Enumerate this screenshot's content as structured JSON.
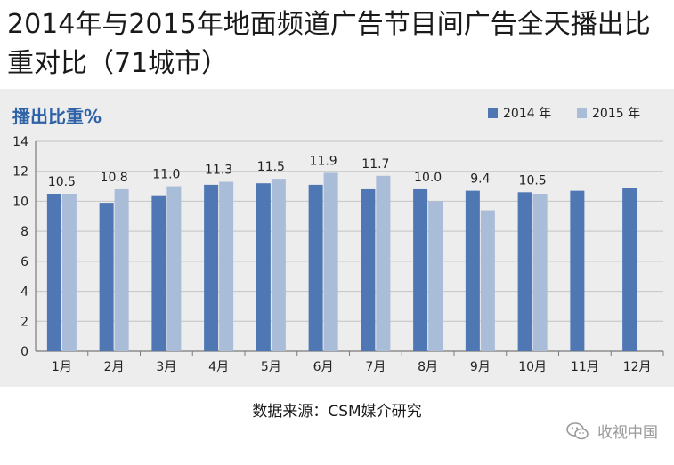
{
  "title": "2014年与2015年地面频道广告节目间广告全天播出比重对比（71城市）",
  "source": "数据来源：CSM媒介研究",
  "watermark": "收视中国",
  "colors": {
    "panel_bg": "#ededed",
    "series_2014": "#4f77b3",
    "series_2015": "#a9bcd8",
    "chart_title": "#2f63a8"
  },
  "chart_data": {
    "type": "bar",
    "title": "播出比重%",
    "categories": [
      "1月",
      "2月",
      "3月",
      "4月",
      "5月",
      "6月",
      "7月",
      "8月",
      "9月",
      "10月",
      "11月",
      "12月"
    ],
    "series": [
      {
        "name": "2014 年",
        "values": [
          10.5,
          9.9,
          10.4,
          11.1,
          11.2,
          11.1,
          10.8,
          10.8,
          10.7,
          10.6,
          10.7,
          10.9
        ]
      },
      {
        "name": "2015 年",
        "values": [
          10.5,
          10.8,
          11.0,
          11.3,
          11.5,
          11.9,
          11.7,
          10.0,
          9.4,
          10.5,
          null,
          null
        ]
      }
    ],
    "data_labels": [
      "10.5",
      "10.8",
      "11.0",
      "11.3",
      "11.5",
      "11.9",
      "11.7",
      "10.0",
      "9.4",
      "10.5"
    ],
    "yticks": [
      "0",
      "2",
      "4",
      "6",
      "8",
      "10",
      "12",
      "14"
    ],
    "ylim": [
      0,
      14
    ],
    "grid": true,
    "legend": "top-right"
  }
}
